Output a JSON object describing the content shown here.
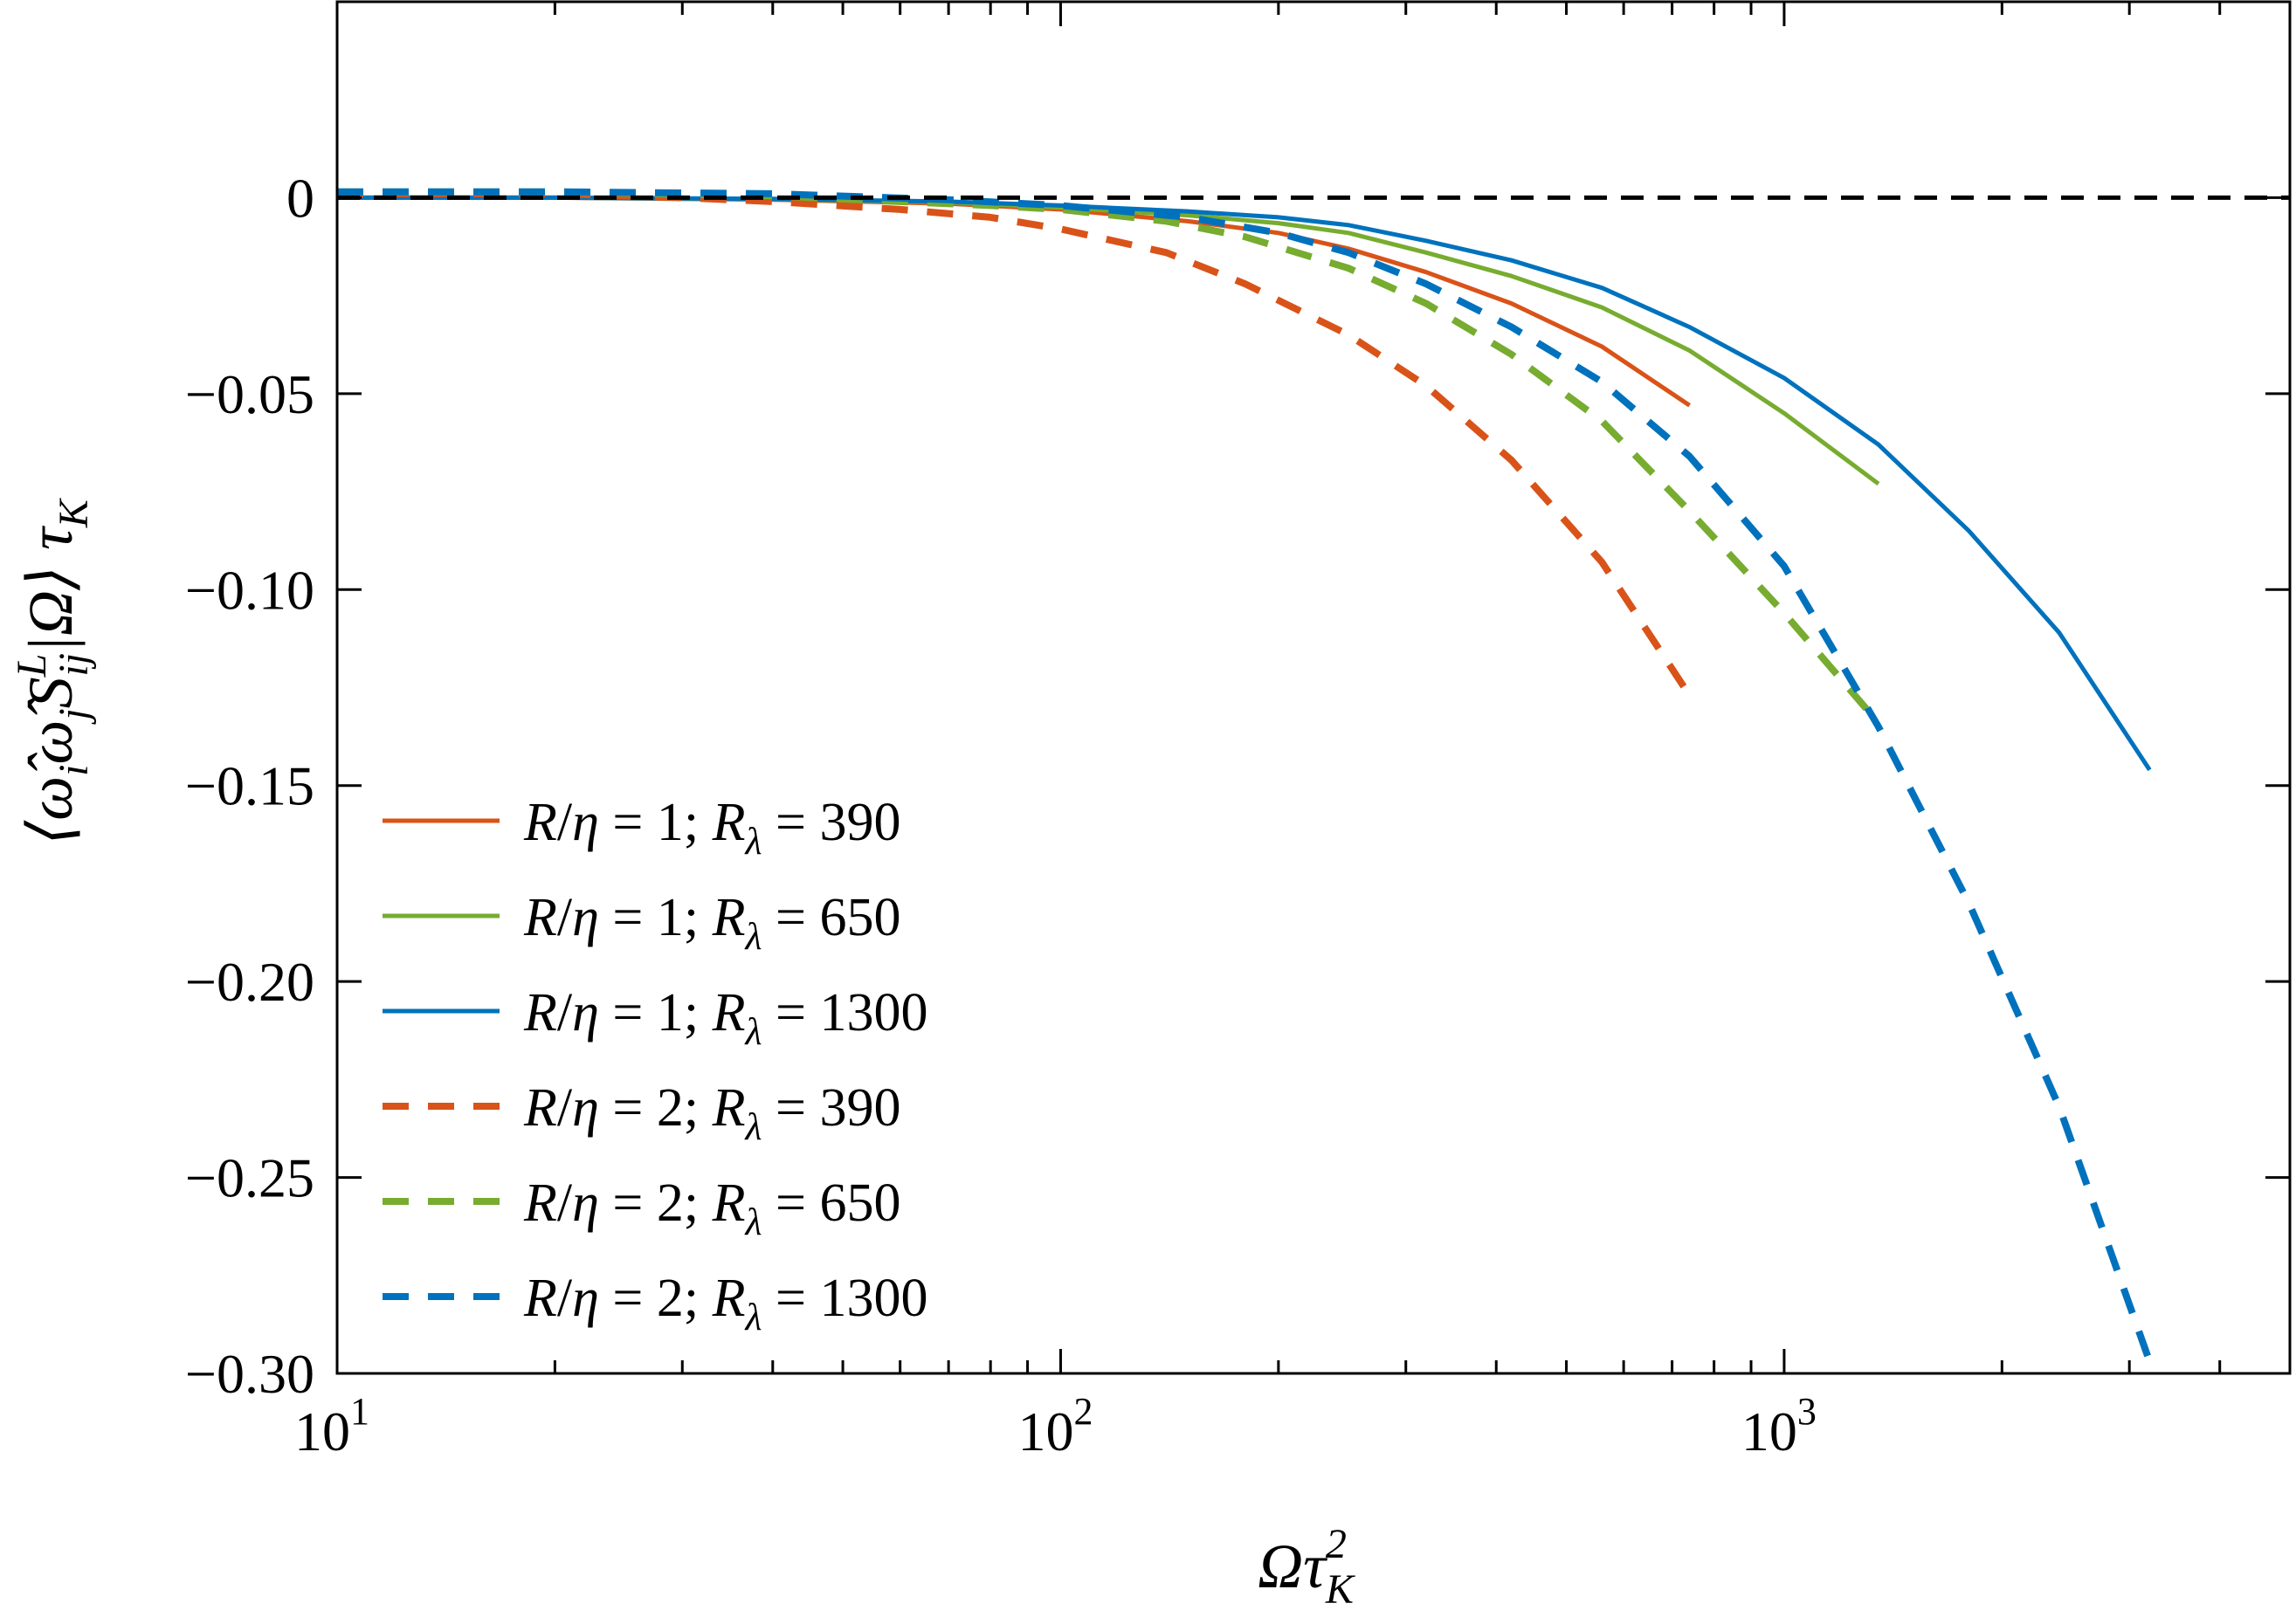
{
  "chart_data": {
    "type": "line",
    "xscale": "log",
    "xlim": [
      10,
      5000
    ],
    "ylim": [
      -0.3,
      0.05
    ],
    "grid": false,
    "legend_position": "lower-left",
    "x_ticks": [
      {
        "value": 10,
        "base": "10",
        "exp": "1"
      },
      {
        "value": 100,
        "base": "10",
        "exp": "2"
      },
      {
        "value": 1000,
        "base": "10",
        "exp": "3"
      }
    ],
    "y_ticks": [
      {
        "value": 0,
        "label": "0"
      },
      {
        "value": -0.05,
        "label": "−0.05"
      },
      {
        "value": -0.1,
        "label": "−0.10"
      },
      {
        "value": -0.15,
        "label": "−0.15"
      },
      {
        "value": -0.2,
        "label": "−0.20"
      },
      {
        "value": -0.25,
        "label": "−0.25"
      },
      {
        "value": -0.3,
        "label": "−0.30"
      }
    ],
    "reference_line": {
      "y": 0,
      "color": "#000000",
      "dash": true
    },
    "series": [
      {
        "name": "R/η = 1; Rλ = 390",
        "legend": {
          "r": "1",
          "rl": "390"
        },
        "color": "#d95319",
        "dash": false,
        "x": [
          10,
          20,
          40,
          70,
          100,
          150,
          200,
          250,
          320,
          420,
          560,
          740
        ],
        "y": [
          0,
          0,
          -0.0005,
          -0.0015,
          -0.003,
          -0.006,
          -0.009,
          -0.013,
          -0.019,
          -0.027,
          -0.038,
          -0.053
        ]
      },
      {
        "name": "R/η = 1; Rλ = 650",
        "legend": {
          "r": "1",
          "rl": "650"
        },
        "color": "#77ac30",
        "dash": false,
        "x": [
          10,
          20,
          40,
          70,
          100,
          150,
          200,
          250,
          320,
          420,
          560,
          740,
          1000,
          1350
        ],
        "y": [
          0,
          0,
          -0.0004,
          -0.0012,
          -0.0025,
          -0.0045,
          -0.0065,
          -0.009,
          -0.014,
          -0.02,
          -0.028,
          -0.039,
          -0.055,
          -0.073
        ]
      },
      {
        "name": "R/η = 1; Rλ = 1300",
        "legend": {
          "r": "1",
          "rl": "1300"
        },
        "color": "#0072bd",
        "dash": false,
        "x": [
          10,
          20,
          40,
          70,
          100,
          150,
          200,
          250,
          320,
          420,
          560,
          740,
          1000,
          1350,
          1800,
          2400,
          3200
        ],
        "y": [
          0,
          0,
          -0.0003,
          -0.001,
          -0.002,
          -0.0035,
          -0.005,
          -0.007,
          -0.011,
          -0.016,
          -0.023,
          -0.033,
          -0.046,
          -0.063,
          -0.085,
          -0.111,
          -0.146
        ]
      },
      {
        "name": "R/η = 2; Rλ = 390",
        "legend": {
          "r": "2",
          "rl": "390"
        },
        "color": "#d95319",
        "dash": true,
        "x": [
          10,
          20,
          30,
          40,
          60,
          80,
          100,
          140,
          180,
          250,
          320,
          420,
          560,
          740
        ],
        "y": [
          0.001,
          0.001,
          0,
          -0.001,
          -0.003,
          -0.005,
          -0.008,
          -0.014,
          -0.022,
          -0.035,
          -0.048,
          -0.067,
          -0.093,
          -0.127
        ]
      },
      {
        "name": "R/η = 2; Rλ = 650",
        "legend": {
          "r": "2",
          "rl": "650"
        },
        "color": "#77ac30",
        "dash": true,
        "x": [
          10,
          20,
          40,
          60,
          80,
          100,
          140,
          180,
          250,
          320,
          420,
          560,
          740,
          1000,
          1350
        ],
        "y": [
          0.0015,
          0.0015,
          0.0005,
          -0.001,
          -0.002,
          -0.003,
          -0.006,
          -0.01,
          -0.018,
          -0.027,
          -0.04,
          -0.057,
          -0.08,
          -0.106,
          -0.134
        ]
      },
      {
        "name": "R/η = 2; Rλ = 1300",
        "legend": {
          "r": "2",
          "rl": "1300"
        },
        "color": "#0072bd",
        "dash": true,
        "x": [
          10,
          20,
          40,
          70,
          100,
          150,
          200,
          250,
          320,
          420,
          560,
          740,
          1000,
          1350,
          1800,
          2400,
          3200
        ],
        "y": [
          0.0015,
          0.0015,
          0.001,
          -0.0005,
          -0.002,
          -0.005,
          -0.009,
          -0.014,
          -0.022,
          -0.033,
          -0.047,
          -0.066,
          -0.094,
          -0.135,
          -0.18,
          -0.232,
          -0.297
        ]
      }
    ]
  }
}
